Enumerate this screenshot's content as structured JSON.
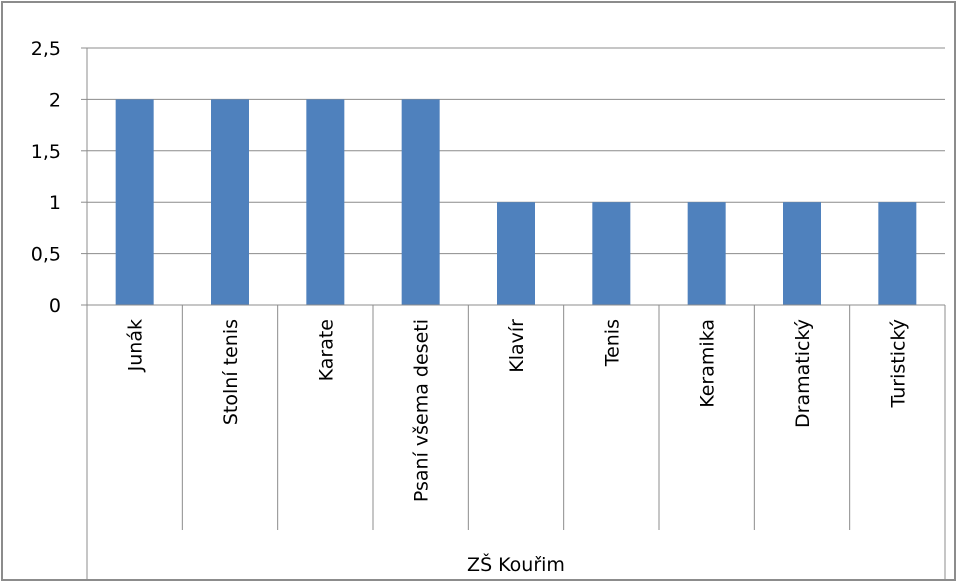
{
  "chart_data": {
    "type": "bar",
    "title": "",
    "xlabel": "",
    "ylabel": "",
    "categories": [
      "Junák",
      "Stolní tenis",
      "Karate",
      "Psaní všema deseti",
      "Klavír",
      "Tenis",
      "Keramika",
      "Dramatický",
      "Turistický"
    ],
    "group_label": "ZŠ Kouřim",
    "values": [
      2,
      2,
      2,
      2,
      1,
      1,
      1,
      1,
      1
    ],
    "ylim": [
      0,
      2.5
    ],
    "yticks": [
      "0",
      "0,5",
      "1",
      "1,5",
      "2",
      "2,5"
    ],
    "grid": true,
    "legend": "none",
    "bar_color": "#4f81bd",
    "grid_color": "#8c8c8c"
  }
}
